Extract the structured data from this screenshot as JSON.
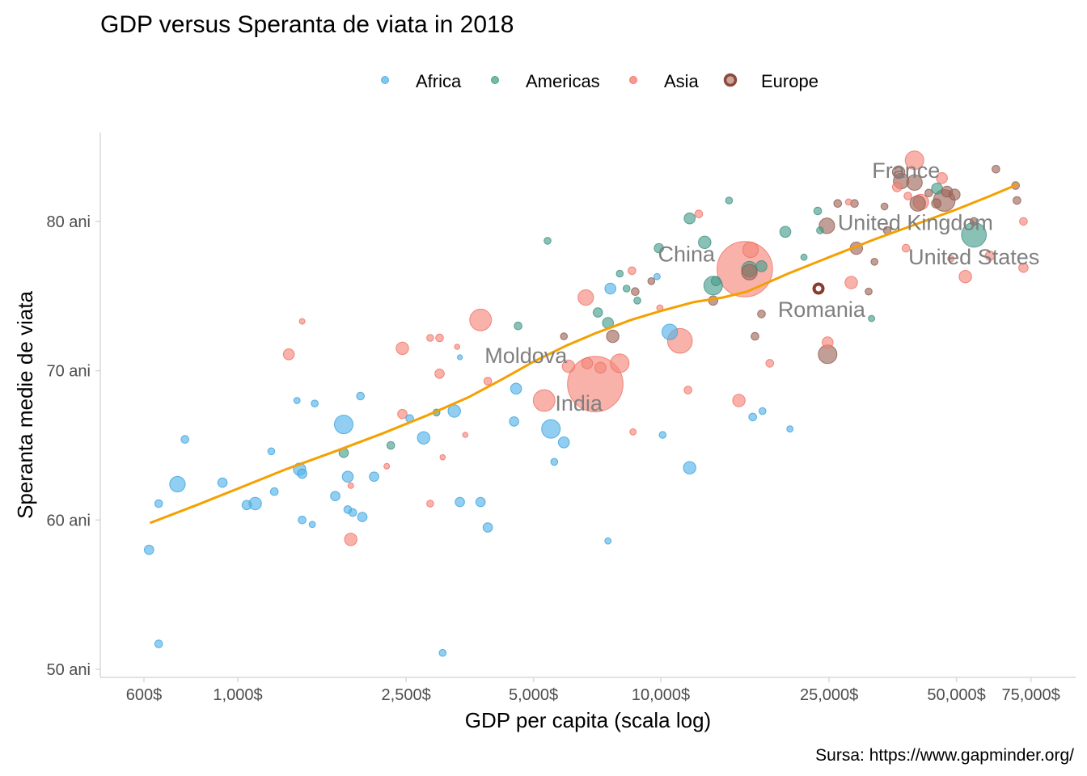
{
  "chart_data": {
    "type": "scatter",
    "title": "GDP versus Speranta de  viata in 2018",
    "xlabel": "GDP per capita (scala log)",
    "ylabel": "Speranta medie de viata",
    "caption": "Sursa: https://www.gapminder.org/",
    "x_scale": "log",
    "xlim": [
      500,
      90000
    ],
    "ylim": [
      50,
      85
    ],
    "x_ticks": [
      {
        "value": 600,
        "label": "600$"
      },
      {
        "value": 1000,
        "label": "1,000$"
      },
      {
        "value": 2500,
        "label": "2,500$"
      },
      {
        "value": 5000,
        "label": "5,000$"
      },
      {
        "value": 10000,
        "label": "10,000$"
      },
      {
        "value": 25000,
        "label": "25,000$"
      },
      {
        "value": 50000,
        "label": "50,000$"
      },
      {
        "value": 75000,
        "label": "75,000$"
      }
    ],
    "y_ticks": [
      {
        "value": 50,
        "label": "50 ani"
      },
      {
        "value": 60,
        "label": "60 ani"
      },
      {
        "value": 70,
        "label": "70 ani"
      },
      {
        "value": 80,
        "label": "80 ani"
      }
    ],
    "grid": false,
    "legend": {
      "position": "top",
      "entries": [
        {
          "name": "Africa",
          "color": "#56B4E9"
        },
        {
          "name": "Americas",
          "color": "#4AA08F"
        },
        {
          "name": "Asia",
          "color": "#F8766D"
        },
        {
          "name": "Europe",
          "color": "#8C4A3C",
          "highlight_ring": true
        }
      ]
    },
    "colors": {
      "Africa": "#56B4E9",
      "Americas": "#4AA08F",
      "Asia": "#F4897D",
      "Europe": "#A06A5E",
      "trend": "#F5A000",
      "highlight": "#8B3A2E"
    },
    "trend_line": {
      "name": "loess",
      "x": [
        620,
        800,
        1000,
        1300,
        1700,
        2200,
        2800,
        3500,
        4200,
        5000,
        6000,
        7000,
        8500,
        10000,
        12000,
        14000,
        16000,
        20000,
        25000,
        32000,
        40000,
        50000,
        60000,
        70000
      ],
      "y": [
        59.8,
        61.0,
        62.1,
        63.4,
        64.6,
        65.8,
        67.0,
        68.2,
        69.4,
        70.6,
        71.7,
        72.5,
        73.4,
        74.0,
        74.6,
        74.9,
        75.3,
        76.5,
        77.6,
        78.8,
        79.8,
        80.8,
        81.7,
        82.5
      ]
    },
    "labels": [
      {
        "text": "France",
        "gdp": 38000,
        "life": 83.4
      },
      {
        "text": "United Kingdom",
        "gdp": 40000,
        "life": 79.9
      },
      {
        "text": "United States",
        "gdp": 55000,
        "life": 77.6
      },
      {
        "text": "China",
        "gdp": 11500,
        "life": 77.8
      },
      {
        "text": "Romania",
        "gdp": 24000,
        "life": 74.1
      },
      {
        "text": "Moldova",
        "gdp": 4800,
        "life": 71.0
      },
      {
        "text": "India",
        "gdp": 6400,
        "life": 67.8
      }
    ],
    "points": [
      {
        "gdp": 617,
        "life": 58.0,
        "region": "Africa",
        "size": 2
      },
      {
        "gdp": 650,
        "life": 61.1,
        "region": "Africa",
        "size": 1.5
      },
      {
        "gdp": 650,
        "life": 51.7,
        "region": "Africa",
        "size": 1.5
      },
      {
        "gdp": 720,
        "life": 62.4,
        "region": "Africa",
        "size": 4
      },
      {
        "gdp": 750,
        "life": 65.4,
        "region": "Africa",
        "size": 1.5
      },
      {
        "gdp": 920,
        "life": 62.5,
        "region": "Africa",
        "size": 2
      },
      {
        "gdp": 1050,
        "life": 61.0,
        "region": "Africa",
        "size": 2
      },
      {
        "gdp": 1100,
        "life": 61.1,
        "region": "Africa",
        "size": 3
      },
      {
        "gdp": 1200,
        "life": 64.6,
        "region": "Africa",
        "size": 1.2
      },
      {
        "gdp": 1220,
        "life": 61.9,
        "region": "Africa",
        "size": 1.5
      },
      {
        "gdp": 1380,
        "life": 68.0,
        "region": "Africa",
        "size": 1
      },
      {
        "gdp": 1400,
        "life": 63.4,
        "region": "Africa",
        "size": 3
      },
      {
        "gdp": 1420,
        "life": 63.1,
        "region": "Africa",
        "size": 2
      },
      {
        "gdp": 1420,
        "life": 60.0,
        "region": "Africa",
        "size": 1.5
      },
      {
        "gdp": 1500,
        "life": 59.7,
        "region": "Africa",
        "size": 1
      },
      {
        "gdp": 1520,
        "life": 67.8,
        "region": "Africa",
        "size": 1.2
      },
      {
        "gdp": 1700,
        "life": 61.6,
        "region": "Africa",
        "size": 2
      },
      {
        "gdp": 1780,
        "life": 66.4,
        "region": "Africa",
        "size": 5
      },
      {
        "gdp": 1820,
        "life": 62.9,
        "region": "Africa",
        "size": 2.5
      },
      {
        "gdp": 1820,
        "life": 60.7,
        "region": "Africa",
        "size": 1.5
      },
      {
        "gdp": 1870,
        "life": 60.5,
        "region": "Africa",
        "size": 1.5
      },
      {
        "gdp": 1950,
        "life": 68.3,
        "region": "Africa",
        "size": 1.5
      },
      {
        "gdp": 1970,
        "life": 60.2,
        "region": "Africa",
        "size": 2
      },
      {
        "gdp": 2100,
        "life": 62.9,
        "region": "Africa",
        "size": 2
      },
      {
        "gdp": 2550,
        "life": 66.8,
        "region": "Africa",
        "size": 1.5
      },
      {
        "gdp": 2750,
        "life": 65.5,
        "region": "Africa",
        "size": 3
      },
      {
        "gdp": 3050,
        "life": 51.1,
        "region": "Africa",
        "size": 1.2
      },
      {
        "gdp": 3250,
        "life": 67.3,
        "region": "Africa",
        "size": 3
      },
      {
        "gdp": 3350,
        "life": 61.2,
        "region": "Africa",
        "size": 2
      },
      {
        "gdp": 3750,
        "life": 61.2,
        "region": "Africa",
        "size": 2
      },
      {
        "gdp": 3900,
        "life": 59.5,
        "region": "Africa",
        "size": 2
      },
      {
        "gdp": 3350,
        "life": 70.9,
        "region": "Africa",
        "size": 0.6
      },
      {
        "gdp": 4500,
        "life": 66.6,
        "region": "Africa",
        "size": 2
      },
      {
        "gdp": 4550,
        "life": 68.8,
        "region": "Africa",
        "size": 2.5
      },
      {
        "gdp": 5500,
        "life": 66.1,
        "region": "Africa",
        "size": 5
      },
      {
        "gdp": 5600,
        "life": 63.9,
        "region": "Africa",
        "size": 1.2
      },
      {
        "gdp": 5900,
        "life": 65.2,
        "region": "Africa",
        "size": 2.5
      },
      {
        "gdp": 7500,
        "life": 58.6,
        "region": "Africa",
        "size": 1
      },
      {
        "gdp": 7600,
        "life": 75.5,
        "region": "Africa",
        "size": 2.5
      },
      {
        "gdp": 10100,
        "life": 65.7,
        "region": "Africa",
        "size": 1.2
      },
      {
        "gdp": 10500,
        "life": 72.6,
        "region": "Africa",
        "size": 4
      },
      {
        "gdp": 11700,
        "life": 63.5,
        "region": "Africa",
        "size": 3
      },
      {
        "gdp": 16500,
        "life": 66.9,
        "region": "Africa",
        "size": 1.5
      },
      {
        "gdp": 17400,
        "life": 67.3,
        "region": "Africa",
        "size": 1.2
      },
      {
        "gdp": 20200,
        "life": 66.1,
        "region": "Africa",
        "size": 1
      },
      {
        "gdp": 9800,
        "life": 76.3,
        "region": "Africa",
        "size": 1
      },
      {
        "gdp": 1780,
        "life": 64.5,
        "region": "Americas",
        "size": 2
      },
      {
        "gdp": 2300,
        "life": 65.0,
        "region": "Americas",
        "size": 1.5
      },
      {
        "gdp": 2950,
        "life": 67.2,
        "region": "Americas",
        "size": 1.2
      },
      {
        "gdp": 4600,
        "life": 73.0,
        "region": "Americas",
        "size": 1.5
      },
      {
        "gdp": 5400,
        "life": 78.7,
        "region": "Americas",
        "size": 1.2
      },
      {
        "gdp": 7100,
        "life": 73.9,
        "region": "Americas",
        "size": 2
      },
      {
        "gdp": 7500,
        "life": 73.2,
        "region": "Americas",
        "size": 2.5
      },
      {
        "gdp": 8000,
        "life": 76.5,
        "region": "Americas",
        "size": 1.2
      },
      {
        "gdp": 8300,
        "life": 75.5,
        "region": "Americas",
        "size": 1.2
      },
      {
        "gdp": 8800,
        "life": 74.7,
        "region": "Americas",
        "size": 1.2
      },
      {
        "gdp": 9900,
        "life": 78.2,
        "region": "Americas",
        "size": 2
      },
      {
        "gdp": 11700,
        "life": 80.2,
        "region": "Americas",
        "size": 2.5
      },
      {
        "gdp": 12700,
        "life": 78.6,
        "region": "Americas",
        "size": 3
      },
      {
        "gdp": 13300,
        "life": 75.7,
        "region": "Americas",
        "size": 5
      },
      {
        "gdp": 13500,
        "life": 76.0,
        "region": "Americas",
        "size": 2
      },
      {
        "gdp": 14500,
        "life": 81.4,
        "region": "Americas",
        "size": 1.2
      },
      {
        "gdp": 16200,
        "life": 76.8,
        "region": "Americas",
        "size": 4
      },
      {
        "gdp": 17300,
        "life": 77.0,
        "region": "Americas",
        "size": 2.5
      },
      {
        "gdp": 19700,
        "life": 79.3,
        "region": "Americas",
        "size": 2.5
      },
      {
        "gdp": 21800,
        "life": 77.6,
        "region": "Americas",
        "size": 1
      },
      {
        "gdp": 23500,
        "life": 80.7,
        "region": "Americas",
        "size": 1.5
      },
      {
        "gdp": 23800,
        "life": 79.4,
        "region": "Americas",
        "size": 1.2
      },
      {
        "gdp": 31500,
        "life": 73.5,
        "region": "Americas",
        "size": 1
      },
      {
        "gdp": 45000,
        "life": 82.2,
        "region": "Americas",
        "size": 2.5
      },
      {
        "gdp": 55000,
        "life": 79.1,
        "region": "Americas",
        "size": 7
      },
      {
        "gdp": 1320,
        "life": 71.1,
        "region": "Asia",
        "size": 2.5
      },
      {
        "gdp": 1420,
        "life": 73.3,
        "region": "Asia",
        "size": 0.8
      },
      {
        "gdp": 1850,
        "life": 58.7,
        "region": "Asia",
        "size": 3
      },
      {
        "gdp": 1850,
        "life": 62.3,
        "region": "Asia",
        "size": 0.8
      },
      {
        "gdp": 2250,
        "life": 63.6,
        "region": "Asia",
        "size": 0.8
      },
      {
        "gdp": 2450,
        "life": 71.5,
        "region": "Asia",
        "size": 3
      },
      {
        "gdp": 2450,
        "life": 67.1,
        "region": "Asia",
        "size": 2
      },
      {
        "gdp": 2850,
        "life": 72.2,
        "region": "Asia",
        "size": 1.2
      },
      {
        "gdp": 2850,
        "life": 61.1,
        "region": "Asia",
        "size": 1.2
      },
      {
        "gdp": 3000,
        "life": 72.2,
        "region": "Asia",
        "size": 1.5
      },
      {
        "gdp": 3000,
        "life": 69.8,
        "region": "Asia",
        "size": 2
      },
      {
        "gdp": 3050,
        "life": 64.2,
        "region": "Asia",
        "size": 0.7
      },
      {
        "gdp": 3300,
        "life": 71.6,
        "region": "Asia",
        "size": 0.7
      },
      {
        "gdp": 3750,
        "life": 73.4,
        "region": "Asia",
        "size": 6
      },
      {
        "gdp": 3900,
        "life": 69.3,
        "region": "Asia",
        "size": 1.5
      },
      {
        "gdp": 3450,
        "life": 65.7,
        "region": "Asia",
        "size": 0.7
      },
      {
        "gdp": 5300,
        "life": 68.0,
        "region": "Asia",
        "size": 6
      },
      {
        "gdp": 6050,
        "life": 70.3,
        "region": "Asia",
        "size": 3
      },
      {
        "gdp": 6650,
        "life": 74.9,
        "region": "Asia",
        "size": 4
      },
      {
        "gdp": 6700,
        "life": 70.5,
        "region": "Asia",
        "size": 2.5
      },
      {
        "gdp": 7000,
        "life": 69.1,
        "region": "Asia",
        "size": 17
      },
      {
        "gdp": 7200,
        "life": 70.2,
        "region": "Asia",
        "size": 2.5
      },
      {
        "gdp": 8000,
        "life": 70.5,
        "region": "Asia",
        "size": 5
      },
      {
        "gdp": 8550,
        "life": 76.7,
        "region": "Asia",
        "size": 1.5
      },
      {
        "gdp": 8600,
        "life": 65.9,
        "region": "Asia",
        "size": 1
      },
      {
        "gdp": 9950,
        "life": 74.2,
        "region": "Asia",
        "size": 1
      },
      {
        "gdp": 11100,
        "life": 72.0,
        "region": "Asia",
        "size": 7
      },
      {
        "gdp": 11600,
        "life": 68.7,
        "region": "Asia",
        "size": 1.5
      },
      {
        "gdp": 12300,
        "life": 80.5,
        "region": "Asia",
        "size": 1.5
      },
      {
        "gdp": 15300,
        "life": 68.0,
        "region": "Asia",
        "size": 3
      },
      {
        "gdp": 15800,
        "life": 76.8,
        "region": "Asia",
        "size": 17
      },
      {
        "gdp": 16300,
        "life": 78.1,
        "region": "Asia",
        "size": 4
      },
      {
        "gdp": 18100,
        "life": 70.5,
        "region": "Asia",
        "size": 1.5
      },
      {
        "gdp": 24800,
        "life": 71.9,
        "region": "Asia",
        "size": 2.5
      },
      {
        "gdp": 28200,
        "life": 75.9,
        "region": "Asia",
        "size": 3
      },
      {
        "gdp": 27800,
        "life": 81.3,
        "region": "Asia",
        "size": 1
      },
      {
        "gdp": 39800,
        "life": 84.1,
        "region": "Asia",
        "size": 5
      },
      {
        "gdp": 36200,
        "life": 82.3,
        "region": "Asia",
        "size": 2
      },
      {
        "gdp": 38400,
        "life": 81.7,
        "region": "Asia",
        "size": 1.5
      },
      {
        "gdp": 41200,
        "life": 81.3,
        "region": "Asia",
        "size": 4
      },
      {
        "gdp": 46200,
        "life": 82.9,
        "region": "Asia",
        "size": 2.5
      },
      {
        "gdp": 48500,
        "life": 77.5,
        "region": "Asia",
        "size": 1
      },
      {
        "gdp": 52500,
        "life": 76.3,
        "region": "Asia",
        "size": 3
      },
      {
        "gdp": 60000,
        "life": 77.7,
        "region": "Asia",
        "size": 2
      },
      {
        "gdp": 72000,
        "life": 80.0,
        "region": "Asia",
        "size": 1.5
      },
      {
        "gdp": 72000,
        "life": 76.9,
        "region": "Asia",
        "size": 2
      },
      {
        "gdp": 38000,
        "life": 78.2,
        "region": "Asia",
        "size": 1.5
      },
      {
        "gdp": 5900,
        "life": 72.3,
        "region": "Europe",
        "size": 1.2
      },
      {
        "gdp": 7700,
        "life": 72.3,
        "region": "Europe",
        "size": 3
      },
      {
        "gdp": 8700,
        "life": 75.3,
        "region": "Europe",
        "size": 1.5
      },
      {
        "gdp": 9500,
        "life": 76.0,
        "region": "Europe",
        "size": 1.2
      },
      {
        "gdp": 13300,
        "life": 74.7,
        "region": "Europe",
        "size": 2
      },
      {
        "gdp": 16200,
        "life": 76.6,
        "region": "Europe",
        "size": 4
      },
      {
        "gdp": 17300,
        "life": 73.8,
        "region": "Europe",
        "size": 1.5
      },
      {
        "gdp": 16700,
        "life": 72.3,
        "region": "Europe",
        "size": 1.5
      },
      {
        "gdp": 24700,
        "life": 79.7,
        "region": "Europe",
        "size": 4
      },
      {
        "gdp": 24800,
        "life": 71.1,
        "region": "Europe",
        "size": 5
      },
      {
        "gdp": 26200,
        "life": 81.2,
        "region": "Europe",
        "size": 1.5
      },
      {
        "gdp": 28700,
        "life": 81.2,
        "region": "Europe",
        "size": 1.5
      },
      {
        "gdp": 29000,
        "life": 78.2,
        "region": "Europe",
        "size": 3
      },
      {
        "gdp": 31000,
        "life": 75.3,
        "region": "Europe",
        "size": 1.2
      },
      {
        "gdp": 32000,
        "life": 77.3,
        "region": "Europe",
        "size": 1.2
      },
      {
        "gdp": 34300,
        "life": 79.4,
        "region": "Europe",
        "size": 1.5
      },
      {
        "gdp": 36500,
        "life": 83.3,
        "region": "Europe",
        "size": 3
      },
      {
        "gdp": 37000,
        "life": 82.7,
        "region": "Europe",
        "size": 4
      },
      {
        "gdp": 39800,
        "life": 82.6,
        "region": "Europe",
        "size": 4
      },
      {
        "gdp": 40500,
        "life": 81.2,
        "region": "Europe",
        "size": 4
      },
      {
        "gdp": 43000,
        "life": 81.9,
        "region": "Europe",
        "size": 1.5
      },
      {
        "gdp": 44800,
        "life": 81.2,
        "region": "Europe",
        "size": 2
      },
      {
        "gdp": 46800,
        "life": 81.4,
        "region": "Europe",
        "size": 6
      },
      {
        "gdp": 47500,
        "life": 82.0,
        "region": "Europe",
        "size": 2.5
      },
      {
        "gdp": 49500,
        "life": 81.8,
        "region": "Europe",
        "size": 2.5
      },
      {
        "gdp": 55000,
        "life": 80.0,
        "region": "Europe",
        "size": 1.5
      },
      {
        "gdp": 62000,
        "life": 83.5,
        "region": "Europe",
        "size": 1.5
      },
      {
        "gdp": 69500,
        "life": 81.4,
        "region": "Europe",
        "size": 1.5
      },
      {
        "gdp": 69000,
        "life": 82.4,
        "region": "Europe",
        "size": 1.5
      },
      {
        "gdp": 33800,
        "life": 81.0,
        "region": "Europe",
        "size": 1.2
      }
    ],
    "highlight_point": {
      "label": "Romania",
      "gdp": 23600,
      "life": 75.5,
      "region": "Europe"
    }
  }
}
